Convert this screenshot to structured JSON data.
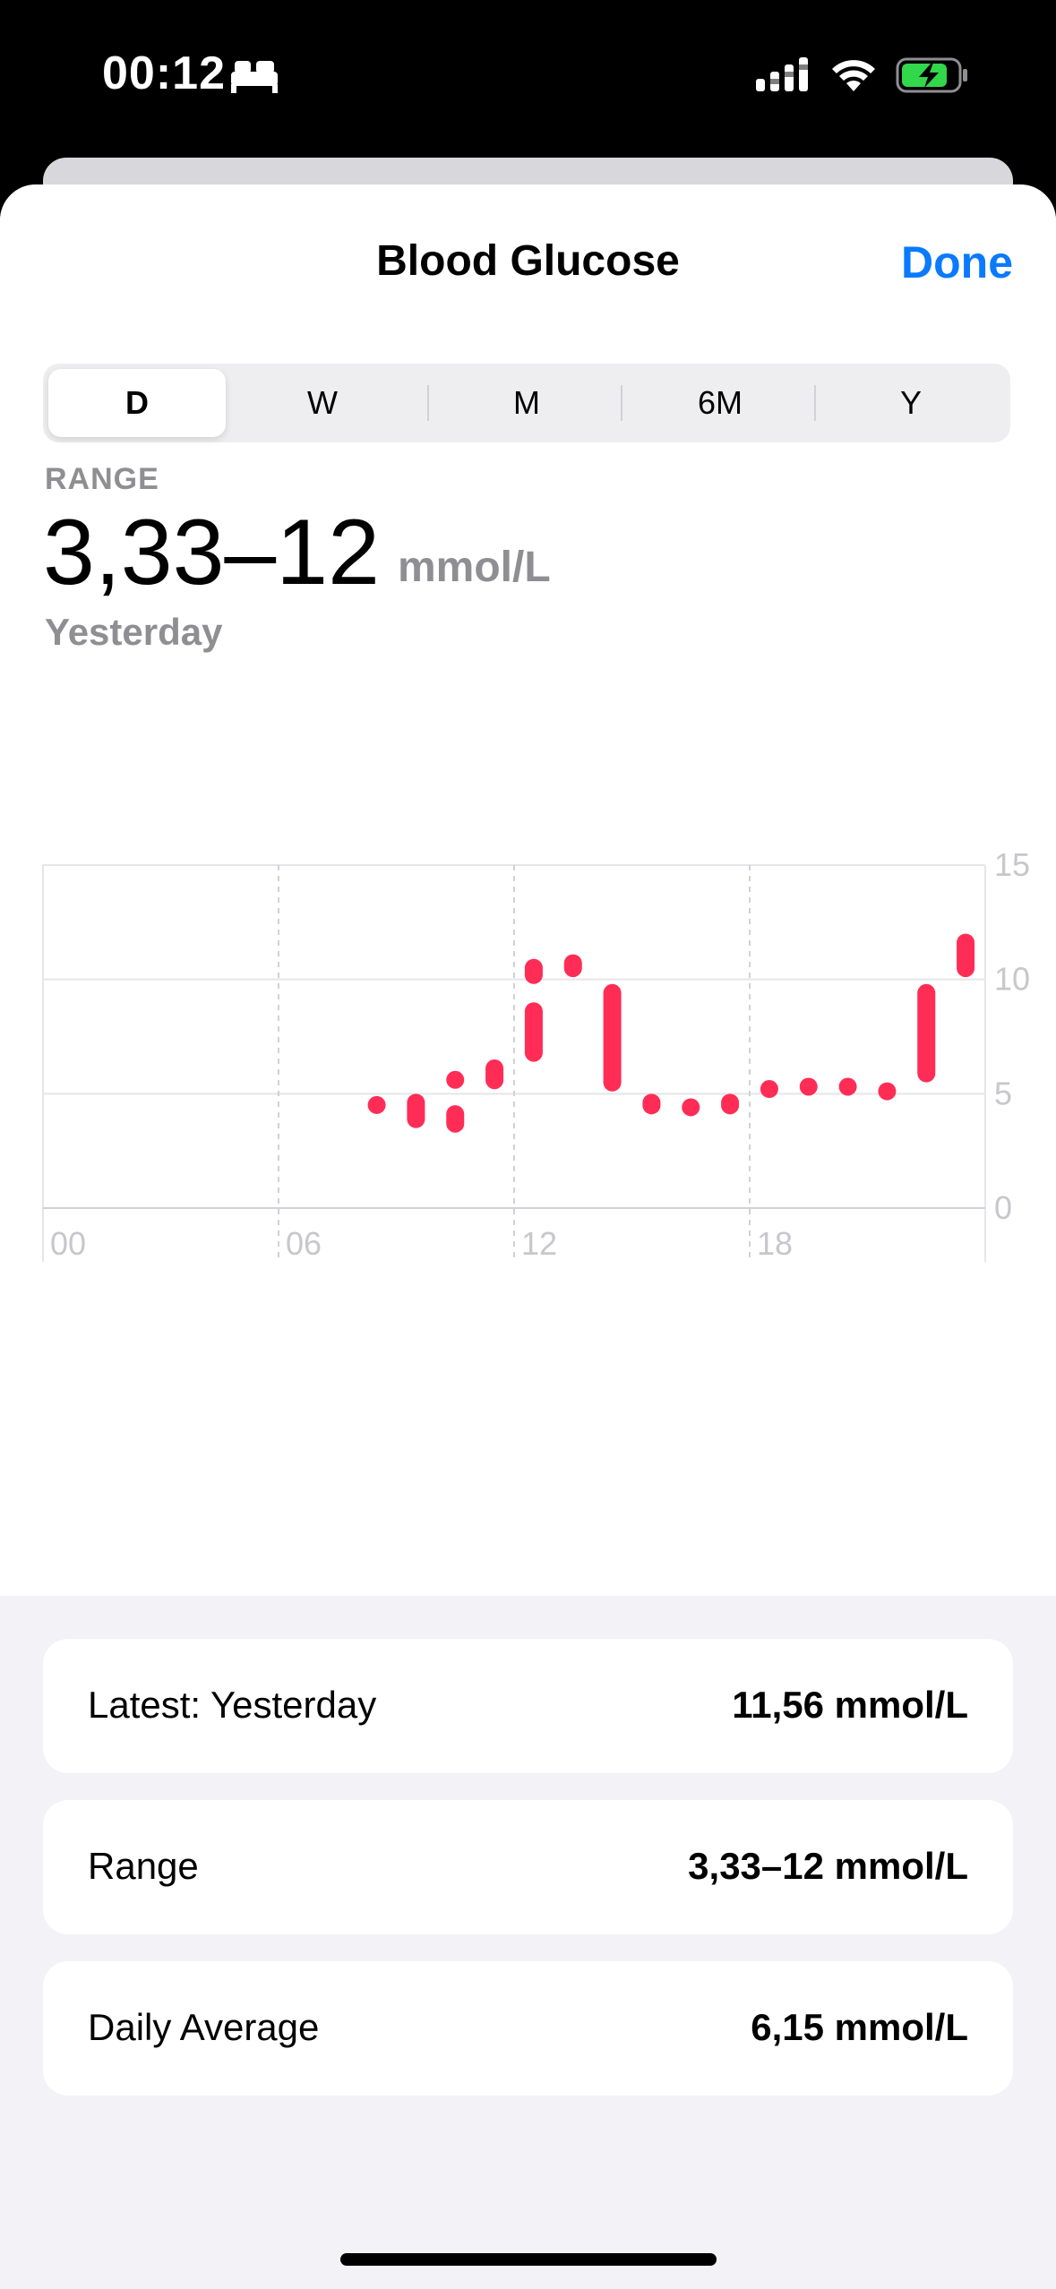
{
  "status_bar": {
    "time": "00:12"
  },
  "header": {
    "title": "Blood Glucose",
    "done_label": "Done"
  },
  "segments": [
    "D",
    "W",
    "M",
    "6M",
    "Y"
  ],
  "selected_segment": "D",
  "summary": {
    "label": "RANGE",
    "value": "3,33–12",
    "unit": "mmol/L",
    "date": "Yesterday"
  },
  "colors": {
    "accent": "#0a7aff",
    "glucose": "#ff2d55"
  },
  "chart_data": {
    "type": "bar",
    "title": "",
    "x_tick_labels": [
      "00",
      "06",
      "12",
      "18"
    ],
    "y_tick_labels": [
      "15",
      "10",
      "5",
      "0"
    ],
    "xlim": [
      0,
      24
    ],
    "ylim": [
      0,
      15
    ],
    "series": [
      {
        "ranges": [
          {
            "x": 8.5,
            "low": 4.3,
            "high": 4.9
          },
          {
            "x": 9.5,
            "low": 3.5,
            "high": 5.0
          },
          {
            "x": 10.5,
            "low": 5.3,
            "high": 6.0
          },
          {
            "x": 10.5,
            "low": 3.3,
            "high": 4.5
          },
          {
            "x": 11.5,
            "low": 5.2,
            "high": 6.5
          },
          {
            "x": 12.5,
            "low": 6.4,
            "high": 9.0
          },
          {
            "x": 12.5,
            "low": 9.8,
            "high": 10.9
          },
          {
            "x": 13.5,
            "low": 10.1,
            "high": 11.1
          },
          {
            "x": 14.5,
            "low": 5.1,
            "high": 9.8
          },
          {
            "x": 15.5,
            "low": 4.1,
            "high": 5.0
          },
          {
            "x": 16.5,
            "low": 4.4,
            "high": 4.8
          },
          {
            "x": 17.5,
            "low": 4.1,
            "high": 5.0
          },
          {
            "x": 18.5,
            "low": 5.1,
            "high": 5.6
          },
          {
            "x": 19.5,
            "low": 5.5,
            "high": 5.7
          },
          {
            "x": 20.5,
            "low": 5.2,
            "high": 5.7
          },
          {
            "x": 21.5,
            "low": 5.1,
            "high": 5.5
          },
          {
            "x": 22.5,
            "low": 5.5,
            "high": 9.8
          },
          {
            "x": 23.5,
            "low": 10.1,
            "high": 12.0
          }
        ]
      }
    ]
  },
  "stats": [
    {
      "label": "Latest: Yesterday",
      "value": "11,56 mmol/L"
    },
    {
      "label": "Range",
      "value": "3,33–12 mmol/L"
    },
    {
      "label": "Daily Average",
      "value": "6,15 mmol/L"
    }
  ]
}
